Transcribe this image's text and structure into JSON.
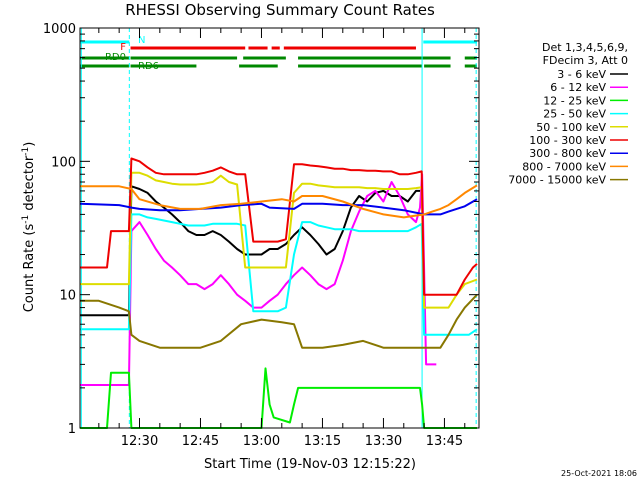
{
  "chart_data": {
    "type": "line",
    "title": "RHESSI Observing Summary Count Rates",
    "xlabel": "Start Time (19-Nov-03 12:15:22)",
    "ylabel_main": "Count Rate (s",
    "ylabel_sup1": "-1",
    "ylabel_mid": " detector",
    "ylabel_sup2": "-1",
    "ylabel_end": ")",
    "yscale": "log",
    "ylim": [
      1,
      1000
    ],
    "xlim_minutes": [
      735.37,
      833.5
    ],
    "x_ticks": [
      {
        "minutes": 750,
        "label": "12:30"
      },
      {
        "minutes": 765,
        "label": "12:45"
      },
      {
        "minutes": 780,
        "label": "13:00"
      },
      {
        "minutes": 795,
        "label": "13:15"
      },
      {
        "minutes": 810,
        "label": "13:30"
      },
      {
        "minutes": 825,
        "label": "13:45"
      }
    ],
    "y_ticks": [
      {
        "value": 1,
        "label": "1"
      },
      {
        "value": 10,
        "label": "10"
      },
      {
        "value": 100,
        "label": "100"
      },
      {
        "value": 1000,
        "label": "1000"
      }
    ],
    "legend_header": [
      "Det 1,3,4,5,6,9,",
      "FDecim 3, Att 0"
    ],
    "timestamp": "25-Oct-2021 18:06",
    "flags": [
      {
        "label": "N",
        "color": "#00ffff",
        "segments": [
          [
            735.4,
            747.5
          ],
          [
            819.8,
            833.0
          ]
        ]
      },
      {
        "label": "F",
        "color": "#ee0000",
        "segments": [
          [
            747.8,
            776.0
          ],
          [
            776.8,
            781.5
          ],
          [
            782.5,
            784.5
          ],
          [
            785.5,
            818.0
          ]
        ]
      },
      {
        "label": "RD0",
        "color": "#008800",
        "segments": [
          [
            735.4,
            747.5
          ],
          [
            747.8,
            774.0
          ],
          [
            775.5,
            786.0
          ],
          [
            789.0,
            826.5
          ],
          [
            830.0,
            833.0
          ]
        ]
      },
      {
        "label": "RD6",
        "color": "#008800",
        "segments": [
          [
            735.4,
            747.5
          ],
          [
            747.8,
            764.0
          ],
          [
            774.5,
            784.0
          ],
          [
            789.0,
            819.5
          ],
          [
            820.0,
            826.5
          ],
          [
            830.0,
            833.0
          ]
        ]
      }
    ],
    "vlines": [
      {
        "minutes": 735.7,
        "color": "#00ffff",
        "style": "solid"
      },
      {
        "minutes": 747.5,
        "color": "#00ffff",
        "style": "dashed"
      },
      {
        "minutes": 819.5,
        "color": "#00ffff",
        "style": "solid"
      },
      {
        "minutes": 832.8,
        "color": "#00ffff",
        "style": "dashed"
      }
    ],
    "series": [
      {
        "name": "3 - 6 keV",
        "color": "#000000",
        "x": [
          735.4,
          742,
          743,
          747.4,
          748,
          750,
          752,
          754,
          756,
          758,
          760,
          762,
          764,
          766,
          768,
          770,
          772,
          774,
          776,
          778,
          780,
          782,
          784,
          786,
          788,
          790,
          792,
          794,
          796,
          798,
          800,
          802,
          804,
          806,
          808,
          810,
          812,
          814,
          816,
          818,
          819.4
        ],
        "y": [
          7,
          7,
          7,
          7,
          65,
          62,
          58,
          50,
          45,
          40,
          35,
          30,
          28,
          28,
          30,
          28,
          25,
          22,
          20,
          20,
          20,
          22,
          22,
          24,
          28,
          32,
          28,
          24,
          20,
          22,
          30,
          45,
          55,
          50,
          58,
          60,
          55,
          55,
          50,
          60,
          60
        ]
      },
      {
        "name": "6 - 12 keV",
        "color": "#ff00ff",
        "x": [
          735.4,
          747.4,
          748,
          750,
          752,
          754,
          756,
          758,
          760,
          762,
          764,
          766,
          768,
          770,
          772,
          774,
          776,
          778,
          780,
          782,
          784,
          786,
          788,
          790,
          792,
          794,
          796,
          798,
          800,
          802,
          804,
          806,
          808,
          810,
          812,
          814,
          816,
          818,
          819,
          819.5,
          820.5,
          822,
          823
        ],
        "y": [
          2.1,
          2.1,
          30,
          35,
          28,
          22,
          18,
          16,
          14,
          12,
          12,
          11,
          12,
          14,
          12,
          10,
          9,
          8,
          8,
          9,
          10,
          12,
          14,
          16,
          14,
          12,
          11,
          12,
          18,
          30,
          42,
          55,
          60,
          50,
          70,
          55,
          40,
          35,
          45,
          80,
          3,
          3,
          3
        ]
      },
      {
        "name": "12 - 25 keV",
        "color": "#00ee00",
        "x": [
          735.4,
          742,
          743,
          747.4,
          748,
          780,
          781,
          782,
          783,
          787,
          788,
          789,
          815,
          819,
          819.5,
          820,
          833
        ],
        "y": [
          1,
          1,
          2.6,
          2.6,
          1,
          1,
          2.8,
          1.5,
          1.2,
          1.1,
          1.5,
          2.0,
          2.0,
          2.0,
          1.5,
          1,
          1
        ]
      },
      {
        "name": "25 - 50 keV",
        "color": "#00ffff",
        "x": [
          735.4,
          742,
          743,
          747.4,
          748,
          750,
          752,
          754,
          756,
          758,
          760,
          762,
          764,
          766,
          768,
          770,
          772,
          774,
          776,
          778,
          780,
          782,
          784,
          786,
          788,
          790,
          792,
          794,
          796,
          798,
          800,
          802,
          804,
          806,
          808,
          810,
          812,
          814,
          816,
          818,
          819.4,
          820,
          824,
          828,
          831,
          833
        ],
        "y": [
          5.5,
          5.5,
          5.5,
          5.5,
          40,
          40,
          38,
          37,
          36,
          35,
          34,
          33,
          33,
          33,
          34,
          34,
          34,
          34,
          33,
          7.5,
          7.5,
          7.5,
          7.5,
          8,
          20,
          35,
          35,
          33,
          32,
          31,
          31,
          31,
          30,
          30,
          30,
          30,
          30,
          30,
          30,
          32,
          34,
          5,
          5,
          5,
          5,
          5.5
        ]
      },
      {
        "name": "50 - 100 keV",
        "color": "#dddd00",
        "x": [
          735.4,
          742,
          743,
          747.4,
          748,
          750,
          752,
          754,
          756,
          758,
          760,
          762,
          764,
          766,
          768,
          770,
          772,
          774,
          776,
          778,
          780,
          782,
          784,
          786,
          788,
          790,
          792,
          794,
          796,
          798,
          800,
          802,
          804,
          806,
          808,
          810,
          812,
          814,
          816,
          818,
          819.4,
          820,
          822,
          824,
          826,
          828,
          830,
          833
        ],
        "y": [
          12,
          12,
          12,
          12,
          82,
          82,
          78,
          72,
          70,
          68,
          67,
          67,
          67,
          68,
          70,
          78,
          70,
          67,
          16,
          16,
          16,
          16,
          16,
          16,
          58,
          68,
          68,
          66,
          65,
          64,
          64,
          64,
          64,
          63,
          63,
          62,
          62,
          62,
          62,
          63,
          64,
          8,
          8,
          8,
          8,
          10,
          12,
          13
        ]
      },
      {
        "name": "100 - 300 keV",
        "color": "#ee0000",
        "x": [
          735.4,
          742,
          743,
          747.4,
          748,
          750,
          752,
          754,
          756,
          758,
          760,
          762,
          764,
          766,
          768,
          770,
          772,
          774,
          776,
          778,
          780,
          782,
          784,
          786,
          788,
          790,
          792,
          794,
          796,
          798,
          800,
          802,
          804,
          806,
          808,
          810,
          812,
          814,
          816,
          818,
          819.4,
          820,
          824,
          828,
          830,
          832,
          833
        ],
        "y": [
          16,
          16,
          30,
          30,
          105,
          100,
          90,
          82,
          80,
          80,
          80,
          80,
          80,
          82,
          85,
          90,
          84,
          80,
          80,
          25,
          25,
          25,
          25,
          26,
          95,
          95,
          93,
          92,
          90,
          88,
          88,
          86,
          86,
          85,
          85,
          84,
          84,
          80,
          80,
          82,
          84,
          10,
          10,
          10,
          13,
          16,
          17
        ]
      },
      {
        "name": "300 - 800 keV",
        "color": "#0000ee",
        "x": [
          735.4,
          745,
          748,
          750,
          755,
          760,
          765,
          770,
          775,
          780,
          782,
          788,
          790,
          795,
          800,
          805,
          810,
          815,
          820,
          822,
          824,
          826,
          828,
          830,
          833
        ],
        "y": [
          48,
          47,
          45,
          44,
          43,
          43,
          44,
          45,
          47,
          48,
          45,
          44,
          48,
          48,
          47,
          47,
          45,
          43,
          40,
          40,
          40,
          42,
          44,
          46,
          52
        ]
      },
      {
        "name": "800 - 7000 keV",
        "color": "#ff8800",
        "x": [
          735.4,
          745,
          748,
          750,
          755,
          760,
          765,
          770,
          775,
          780,
          785,
          788,
          790,
          795,
          800,
          805,
          810,
          815,
          820,
          822,
          824,
          826,
          828,
          830,
          833
        ],
        "y": [
          65,
          65,
          62,
          52,
          47,
          44,
          44,
          47,
          48,
          50,
          52,
          50,
          55,
          55,
          50,
          44,
          40,
          38,
          40,
          42,
          44,
          47,
          52,
          58,
          66
        ]
      },
      {
        "name": "7000 - 15000 keV",
        "color": "#887700",
        "x": [
          735.4,
          740,
          745,
          747.4,
          748,
          750,
          755,
          760,
          765,
          770,
          775,
          780,
          785,
          788,
          790,
          795,
          800,
          805,
          810,
          815,
          820,
          822,
          824,
          826,
          828,
          830,
          833
        ],
        "y": [
          9,
          9,
          8,
          7.5,
          5,
          4.5,
          4,
          4,
          4,
          4.5,
          6,
          6.5,
          6.2,
          6,
          4,
          4,
          4.2,
          4.5,
          4,
          4,
          4,
          4,
          4,
          5,
          6.5,
          8,
          10
        ]
      }
    ]
  }
}
